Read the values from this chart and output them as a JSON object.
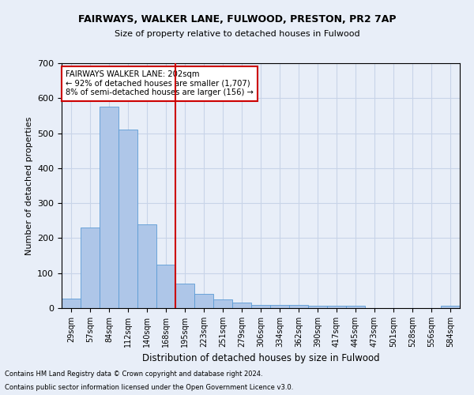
{
  "title1": "FAIRWAYS, WALKER LANE, FULWOOD, PRESTON, PR2 7AP",
  "title2": "Size of property relative to detached houses in Fulwood",
  "xlabel": "Distribution of detached houses by size in Fulwood",
  "ylabel": "Number of detached properties",
  "footnote1": "Contains HM Land Registry data © Crown copyright and database right 2024.",
  "footnote2": "Contains public sector information licensed under the Open Government Licence v3.0.",
  "categories": [
    "29sqm",
    "57sqm",
    "84sqm",
    "112sqm",
    "140sqm",
    "168sqm",
    "195sqm",
    "223sqm",
    "251sqm",
    "279sqm",
    "306sqm",
    "334sqm",
    "362sqm",
    "390sqm",
    "417sqm",
    "445sqm",
    "473sqm",
    "501sqm",
    "528sqm",
    "556sqm",
    "584sqm"
  ],
  "values": [
    27,
    230,
    575,
    510,
    240,
    125,
    70,
    40,
    25,
    15,
    10,
    10,
    10,
    6,
    6,
    6,
    0,
    0,
    0,
    0,
    6
  ],
  "bar_color": "#aec6e8",
  "bar_edge_color": "#5b9bd5",
  "grid_color": "#c8d4e8",
  "background_color": "#e8eef8",
  "vline_x_index": 6,
  "vline_color": "#cc0000",
  "annotation_line1": "FAIRWAYS WALKER LANE: 202sqm",
  "annotation_line2": "← 92% of detached houses are smaller (1,707)",
  "annotation_line3": "8% of semi-detached houses are larger (156) →",
  "annotation_box_color": "#ffffff",
  "annotation_box_edge_color": "#cc0000",
  "ylim": [
    0,
    700
  ],
  "yticks": [
    0,
    100,
    200,
    300,
    400,
    500,
    600,
    700
  ]
}
